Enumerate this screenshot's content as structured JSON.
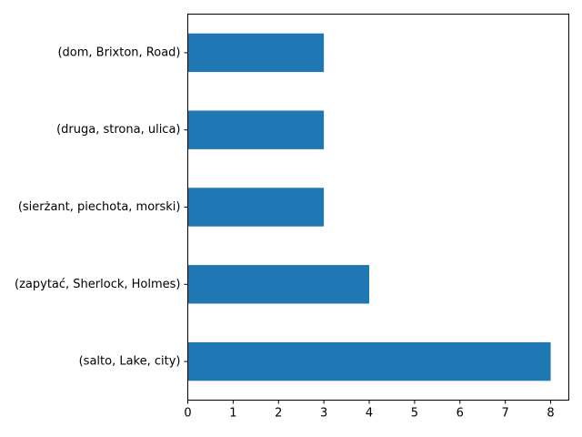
{
  "chart_data": {
    "type": "bar",
    "orientation": "horizontal",
    "title": "",
    "xlabel": "",
    "ylabel": "",
    "categories": [
      "(dom, Brixton, Road)",
      "(druga, strona, ulica)",
      "(sierżant, piechota, morski)",
      "(zapytać, Sherlock, Holmes)",
      "(salto, Lake, city)"
    ],
    "values": [
      3,
      3,
      3,
      4,
      8
    ],
    "xlim": [
      0,
      8.4
    ],
    "xticks": [
      0,
      1,
      2,
      3,
      4,
      5,
      6,
      7,
      8
    ],
    "grid": false,
    "bar_color": "#1f77b4"
  }
}
